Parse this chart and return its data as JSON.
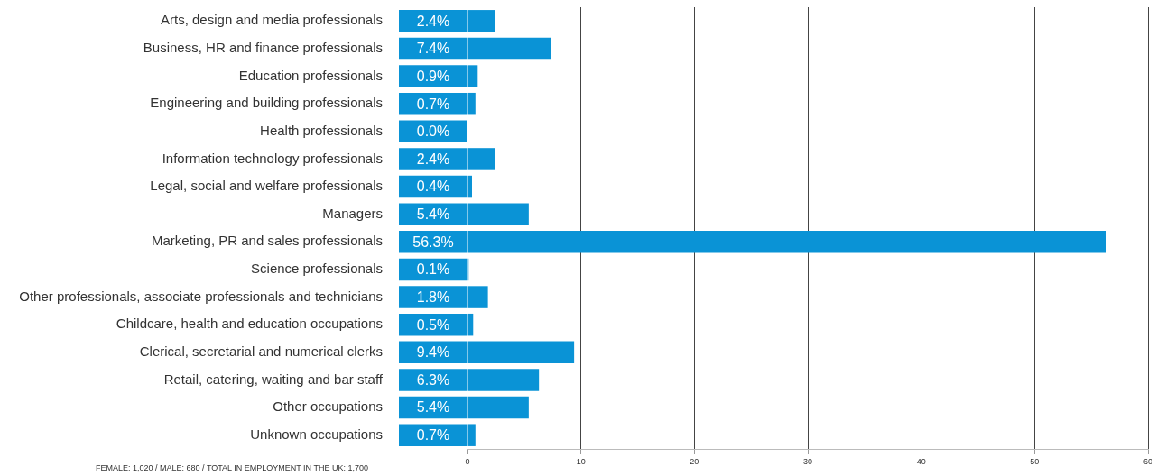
{
  "chart_data": {
    "type": "bar",
    "orientation": "horizontal",
    "categories": [
      "Arts, design and media professionals",
      "Business, HR and finance professionals",
      "Education professionals",
      "Engineering and building professionals",
      "Health professionals",
      "Information technology professionals",
      "Legal, social and welfare professionals",
      "Managers",
      "Marketing, PR and sales professionals",
      "Science professionals",
      "Other professionals, associate professionals and technicians",
      "Childcare, health and education occupations",
      "Clerical, secretarial and numerical clerks",
      "Retail, catering, waiting and bar staff",
      "Other occupations",
      "Unknown occupations"
    ],
    "values": [
      2.4,
      7.4,
      0.9,
      0.7,
      0.0,
      2.4,
      0.4,
      5.4,
      56.3,
      0.1,
      1.8,
      0.5,
      9.4,
      6.3,
      5.4,
      0.7
    ],
    "value_labels": [
      "2.4%",
      "7.4%",
      "0.9%",
      "0.7%",
      "0.0%",
      "2.4%",
      "0.4%",
      "5.4%",
      "56.3%",
      "0.1%",
      "1.8%",
      "0.5%",
      "9.4%",
      "6.3%",
      "5.4%",
      "0.7%"
    ],
    "color": "#0a93d6",
    "xlim": [
      0,
      60
    ],
    "xticks": [
      0,
      10,
      20,
      30,
      40,
      50,
      60
    ],
    "grid": "x",
    "legend": false,
    "annotations": [
      "FEMALE: 1,020 / MALE: 680 / TOTAL IN EMPLOYMENT IN THE UK: 1,700"
    ]
  }
}
